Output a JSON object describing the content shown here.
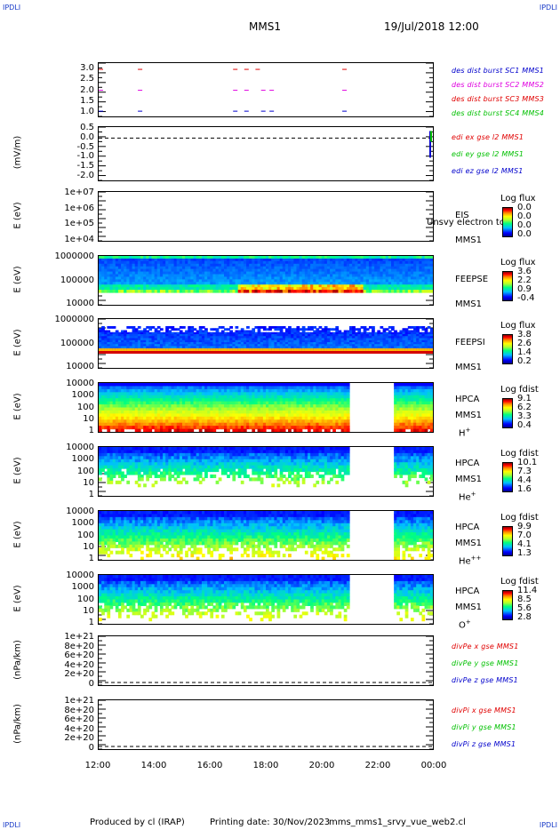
{
  "corners": {
    "tl": "IPDLI",
    "tr": "IPDLI",
    "bl": "IPDLI",
    "br": "IPDLI"
  },
  "header": {
    "spacecraft": "MMS1",
    "datetime": "19/Jul/2018 12:00"
  },
  "footer": {
    "produced_by": "Produced by cl (IRAP)",
    "printing_date": "Printing date: 30/Nov/2023",
    "filename": "mms_mms1_srvy_vue_web2.cl"
  },
  "colors": {
    "red": "#e00000",
    "magenta": "#e000e0",
    "blue": "#0000cc",
    "green": "#00c000"
  },
  "chart_data": [
    {
      "type": "line",
      "panel": "dist-burst",
      "ylabel": "",
      "yticks": [
        "3.0",
        "2.5",
        "2.0",
        "1.5",
        "1.0"
      ],
      "ylim": [
        0.75,
        3.3
      ],
      "legend": [
        {
          "name": "des dist burst SC1 MMS1",
          "color": "#0000cc"
        },
        {
          "name": "des dist burst SC2 MMS2",
          "color": "#e000e0"
        },
        {
          "name": "des dist burst SC3 MMS3",
          "color": "#e00000"
        },
        {
          "name": "des dist burst SC4 MMS4",
          "color": "#00c000"
        }
      ],
      "series": [
        {
          "name": "SC3",
          "y": 3.0,
          "x": [
            12.0,
            13.4,
            16.8,
            17.2,
            17.6,
            20.7
          ]
        },
        {
          "name": "SC2",
          "y": 2.0,
          "x": [
            12.0,
            13.4,
            16.8,
            17.2,
            17.8,
            18.1,
            20.7
          ]
        },
        {
          "name": "SC1",
          "y": 1.0,
          "x": [
            12.0,
            13.4,
            16.8,
            17.2,
            17.8,
            18.1,
            20.7
          ]
        }
      ]
    },
    {
      "type": "line",
      "panel": "edi",
      "ylabel": "(mV/m)",
      "yticks": [
        "0.5",
        "0.0",
        "-0.5",
        "-1.0",
        "-1.5",
        "-2.0"
      ],
      "ylim": [
        -2.3,
        0.6
      ],
      "legend": [
        {
          "name": "edi ex gse l2 MMS1",
          "color": "#e00000"
        },
        {
          "name": "edi ey gse l2 MMS1",
          "color": "#00c000"
        },
        {
          "name": "edi ez gse l2 MMS1",
          "color": "#0000cc"
        }
      ]
    },
    {
      "type": "heatmap",
      "panel": "eis",
      "ylabel": "E (eV)",
      "yticks": [
        "1e+07",
        "1e+06",
        "1e+05",
        "1e+04"
      ],
      "instrument": [
        "EIS",
        "MMS1"
      ],
      "overlay_text": "Unsvy electron tof",
      "colorbar": {
        "title": "Log flux",
        "ticks": [
          "0.0",
          "0.0",
          "0.0",
          "0.0"
        ]
      }
    },
    {
      "type": "heatmap",
      "panel": "feeps-e",
      "ylabel": "E (eV)",
      "yticks": [
        "1000000",
        "100000",
        "10000"
      ],
      "instrument": [
        "FEEPSE",
        "MMS1"
      ],
      "colorbar": {
        "title": "Log flux",
        "ticks": [
          "3.6",
          "2.2",
          "0.9",
          "-0.4"
        ]
      }
    },
    {
      "type": "heatmap",
      "panel": "feeps-i",
      "ylabel": "E (eV)",
      "yticks": [
        "1000000",
        "100000",
        "10000"
      ],
      "instrument": [
        "FEEPSI",
        "MMS1"
      ],
      "colorbar": {
        "title": "Log flux",
        "ticks": [
          "3.8",
          "2.6",
          "1.4",
          "0.2"
        ]
      }
    },
    {
      "type": "heatmap",
      "panel": "hpca-h",
      "ylabel": "E (eV)",
      "yticks": [
        "10000",
        "1000",
        "100",
        "10",
        "1"
      ],
      "instrument": [
        "HPCA",
        "MMS1"
      ],
      "species": "H",
      "charge": "+",
      "colorbar": {
        "title": "Log fdist",
        "ticks": [
          "9.1",
          "6.2",
          "3.3",
          "0.4"
        ]
      },
      "gap_hours": [
        21.0,
        22.6
      ]
    },
    {
      "type": "heatmap",
      "panel": "hpca-he",
      "ylabel": "E (eV)",
      "yticks": [
        "10000",
        "1000",
        "100",
        "10",
        "1"
      ],
      "instrument": [
        "HPCA",
        "MMS1"
      ],
      "species": "He",
      "charge": "+",
      "colorbar": {
        "title": "Log fdist",
        "ticks": [
          "10.1",
          "7.3",
          "4.4",
          "1.6"
        ]
      },
      "gap_hours": [
        21.0,
        22.6
      ]
    },
    {
      "type": "heatmap",
      "panel": "hpca-he2",
      "ylabel": "E (eV)",
      "yticks": [
        "10000",
        "1000",
        "100",
        "10",
        "1"
      ],
      "instrument": [
        "HPCA",
        "MMS1"
      ],
      "species": "He",
      "charge": "++",
      "colorbar": {
        "title": "Log fdist",
        "ticks": [
          "9.9",
          "7.0",
          "4.1",
          "1.3"
        ]
      },
      "gap_hours": [
        21.0,
        22.6
      ]
    },
    {
      "type": "heatmap",
      "panel": "hpca-o",
      "ylabel": "E (eV)",
      "yticks": [
        "10000",
        "1000",
        "100",
        "10",
        "1"
      ],
      "instrument": [
        "HPCA",
        "MMS1"
      ],
      "species": "O",
      "charge": "+",
      "colorbar": {
        "title": "Log fdist",
        "ticks": [
          "11.4",
          "8.5",
          "5.6",
          "2.8"
        ]
      },
      "gap_hours": [
        21.0,
        22.6
      ]
    },
    {
      "type": "line",
      "panel": "divpe",
      "ylabel": "(nPa/km)",
      "yticks": [
        "1e+21",
        "8e+20",
        "6e+20",
        "4e+20",
        "2e+20",
        "0"
      ],
      "legend": [
        {
          "name": "divPe x gse MMS1",
          "color": "#e00000"
        },
        {
          "name": "divPe y gse MMS1",
          "color": "#00c000"
        },
        {
          "name": "divPe z gse MMS1",
          "color": "#0000cc"
        }
      ]
    },
    {
      "type": "line",
      "panel": "divpi",
      "ylabel": "(nPa/km)",
      "yticks": [
        "1e+21",
        "8e+20",
        "6e+20",
        "4e+20",
        "2e+20",
        "0"
      ],
      "legend": [
        {
          "name": "divPi x gse MMS1",
          "color": "#e00000"
        },
        {
          "name": "divPi y gse MMS1",
          "color": "#00c000"
        },
        {
          "name": "divPi z gse MMS1",
          "color": "#0000cc"
        }
      ]
    }
  ],
  "xaxis": {
    "ticks": [
      "12:00",
      "14:00",
      "16:00",
      "18:00",
      "20:00",
      "22:00",
      "00:00"
    ],
    "range_hours": [
      12,
      24
    ]
  }
}
